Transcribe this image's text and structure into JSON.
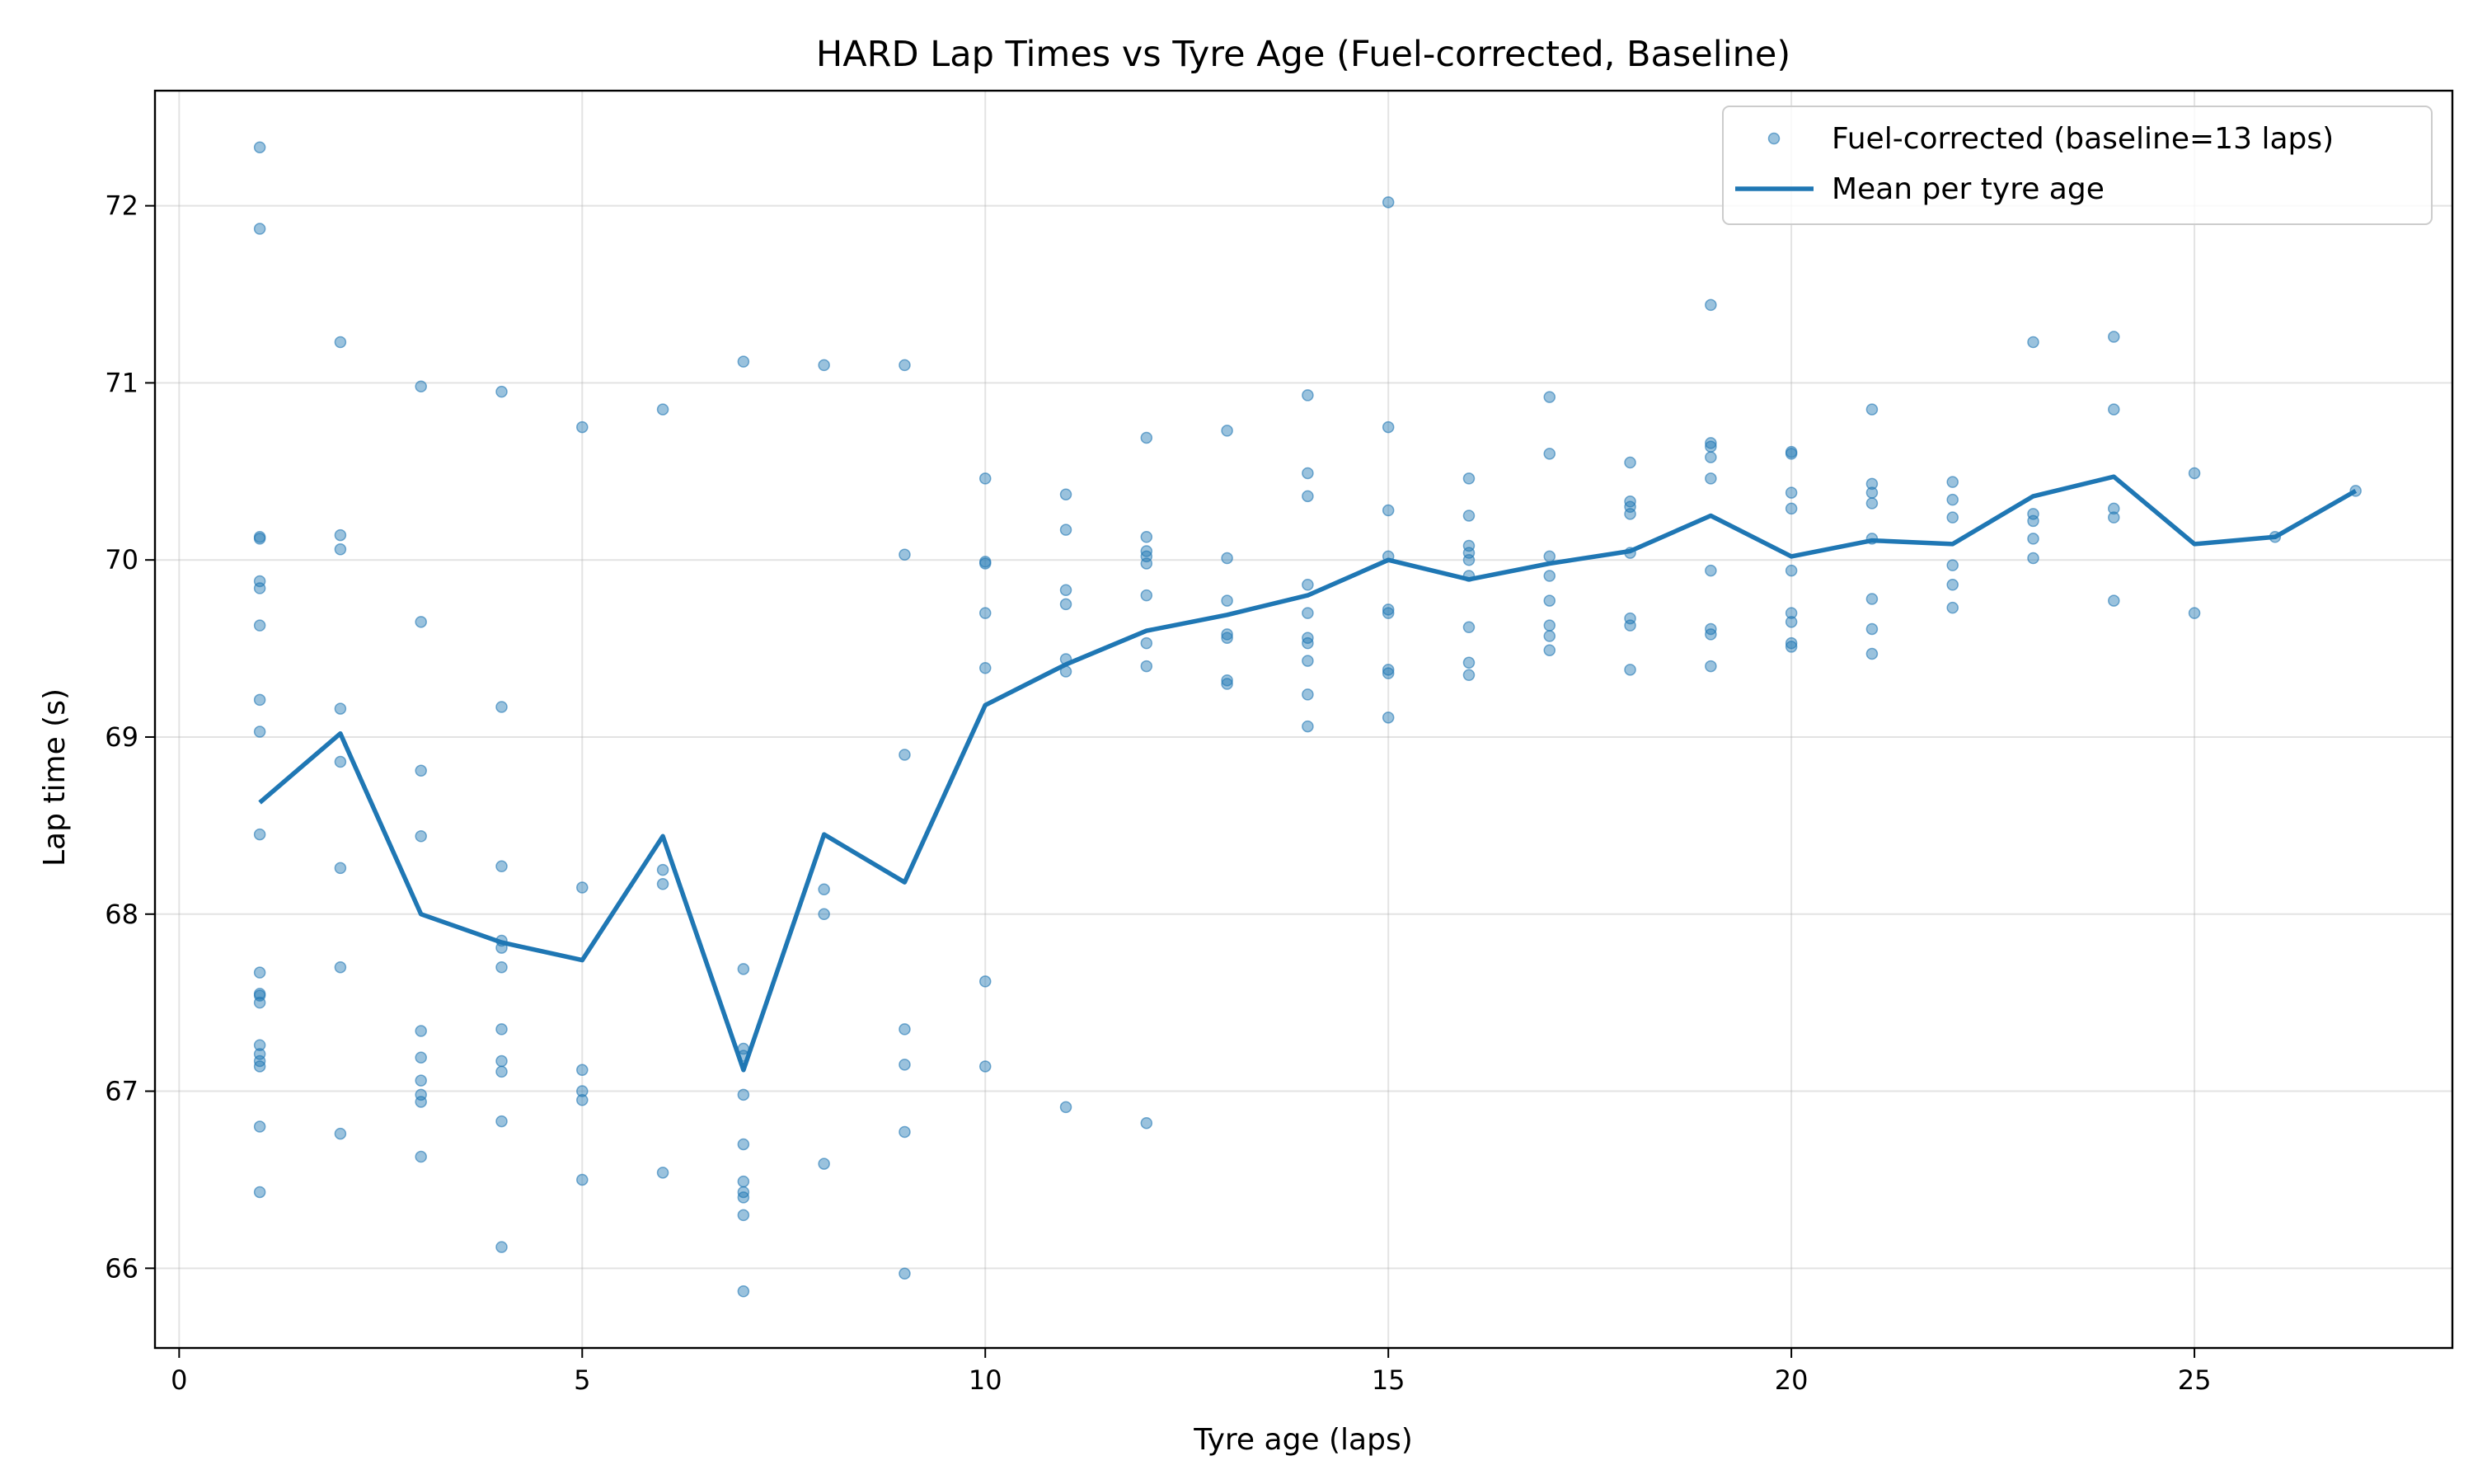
{
  "chart_data": {
    "type": "scatter",
    "title": "HARD Lap Times vs Tyre Age (Fuel-corrected, Baseline)",
    "xlabel": "Tyre age (laps)",
    "ylabel": "Lap time (s)",
    "xlim": [
      -0.3,
      28.2
    ],
    "ylim": [
      65.55,
      72.65
    ],
    "xticks": [
      0,
      5,
      10,
      15,
      20,
      25
    ],
    "yticks": [
      66,
      67,
      68,
      69,
      70,
      71,
      72
    ],
    "grid": true,
    "legend": "top-right",
    "colors": {
      "series": "#1f77b4"
    },
    "series": [
      {
        "name": "Fuel-corrected (baseline=13 laps)",
        "kind": "scatter",
        "points": [
          [
            1,
            72.33
          ],
          [
            1,
            71.87
          ],
          [
            1,
            70.13
          ],
          [
            1,
            70.12
          ],
          [
            1,
            69.88
          ],
          [
            1,
            69.84
          ],
          [
            1,
            69.63
          ],
          [
            1,
            69.21
          ],
          [
            1,
            69.03
          ],
          [
            1,
            68.45
          ],
          [
            1,
            67.67
          ],
          [
            1,
            67.55
          ],
          [
            1,
            67.54
          ],
          [
            1,
            67.5
          ],
          [
            1,
            67.26
          ],
          [
            1,
            67.21
          ],
          [
            1,
            67.17
          ],
          [
            1,
            67.14
          ],
          [
            1,
            66.8
          ],
          [
            1,
            66.43
          ],
          [
            2,
            71.23
          ],
          [
            2,
            70.14
          ],
          [
            2,
            70.06
          ],
          [
            2,
            69.16
          ],
          [
            2,
            68.86
          ],
          [
            2,
            68.26
          ],
          [
            2,
            67.7
          ],
          [
            2,
            66.76
          ],
          [
            3,
            70.98
          ],
          [
            3,
            69.65
          ],
          [
            3,
            68.81
          ],
          [
            3,
            68.44
          ],
          [
            3,
            67.34
          ],
          [
            3,
            67.19
          ],
          [
            3,
            67.06
          ],
          [
            3,
            66.98
          ],
          [
            3,
            66.94
          ],
          [
            3,
            66.63
          ],
          [
            4,
            70.95
          ],
          [
            4,
            69.17
          ],
          [
            4,
            68.27
          ],
          [
            4,
            67.85
          ],
          [
            4,
            67.81
          ],
          [
            4,
            67.7
          ],
          [
            4,
            67.35
          ],
          [
            4,
            67.17
          ],
          [
            4,
            67.11
          ],
          [
            4,
            66.83
          ],
          [
            4,
            66.12
          ],
          [
            5,
            70.75
          ],
          [
            5,
            68.15
          ],
          [
            5,
            67.12
          ],
          [
            5,
            67.0
          ],
          [
            5,
            66.95
          ],
          [
            5,
            66.5
          ],
          [
            6,
            70.85
          ],
          [
            6,
            68.25
          ],
          [
            6,
            68.17
          ],
          [
            6,
            66.54
          ],
          [
            7,
            71.12
          ],
          [
            7,
            67.69
          ],
          [
            7,
            67.24
          ],
          [
            7,
            67.2
          ],
          [
            7,
            66.98
          ],
          [
            7,
            66.7
          ],
          [
            7,
            66.49
          ],
          [
            7,
            66.43
          ],
          [
            7,
            66.4
          ],
          [
            7,
            66.3
          ],
          [
            7,
            65.87
          ],
          [
            8,
            71.1
          ],
          [
            8,
            68.14
          ],
          [
            8,
            68.0
          ],
          [
            8,
            66.59
          ],
          [
            9,
            71.1
          ],
          [
            9,
            70.03
          ],
          [
            9,
            68.9
          ],
          [
            9,
            67.35
          ],
          [
            9,
            67.15
          ],
          [
            9,
            66.77
          ],
          [
            9,
            65.97
          ],
          [
            10,
            70.46
          ],
          [
            10,
            69.99
          ],
          [
            10,
            69.98
          ],
          [
            10,
            69.7
          ],
          [
            10,
            69.39
          ],
          [
            10,
            67.62
          ],
          [
            10,
            67.14
          ],
          [
            11,
            70.37
          ],
          [
            11,
            70.17
          ],
          [
            11,
            69.83
          ],
          [
            11,
            69.75
          ],
          [
            11,
            69.44
          ],
          [
            11,
            69.37
          ],
          [
            11,
            66.91
          ],
          [
            12,
            70.69
          ],
          [
            12,
            70.13
          ],
          [
            12,
            70.05
          ],
          [
            12,
            70.02
          ],
          [
            12,
            69.98
          ],
          [
            12,
            69.8
          ],
          [
            12,
            69.53
          ],
          [
            12,
            69.4
          ],
          [
            12,
            66.82
          ],
          [
            13,
            70.73
          ],
          [
            13,
            70.01
          ],
          [
            13,
            69.77
          ],
          [
            13,
            69.58
          ],
          [
            13,
            69.56
          ],
          [
            13,
            69.32
          ],
          [
            13,
            69.3
          ],
          [
            14,
            70.93
          ],
          [
            14,
            70.49
          ],
          [
            14,
            70.36
          ],
          [
            14,
            69.86
          ],
          [
            14,
            69.7
          ],
          [
            14,
            69.56
          ],
          [
            14,
            69.53
          ],
          [
            14,
            69.43
          ],
          [
            14,
            69.24
          ],
          [
            14,
            69.06
          ],
          [
            15,
            72.02
          ],
          [
            15,
            70.75
          ],
          [
            15,
            70.28
          ],
          [
            15,
            70.02
          ],
          [
            15,
            69.72
          ],
          [
            15,
            69.7
          ],
          [
            15,
            69.38
          ],
          [
            15,
            69.36
          ],
          [
            15,
            69.11
          ],
          [
            16,
            70.46
          ],
          [
            16,
            70.25
          ],
          [
            16,
            70.08
          ],
          [
            16,
            70.04
          ],
          [
            16,
            70.0
          ],
          [
            16,
            69.91
          ],
          [
            16,
            69.62
          ],
          [
            16,
            69.42
          ],
          [
            16,
            69.35
          ],
          [
            17,
            70.92
          ],
          [
            17,
            70.6
          ],
          [
            17,
            70.02
          ],
          [
            17,
            69.91
          ],
          [
            17,
            69.77
          ],
          [
            17,
            69.63
          ],
          [
            17,
            69.57
          ],
          [
            17,
            69.49
          ],
          [
            18,
            70.55
          ],
          [
            18,
            70.33
          ],
          [
            18,
            70.3
          ],
          [
            18,
            70.26
          ],
          [
            18,
            70.04
          ],
          [
            18,
            69.67
          ],
          [
            18,
            69.63
          ],
          [
            18,
            69.38
          ],
          [
            19,
            71.44
          ],
          [
            19,
            70.66
          ],
          [
            19,
            70.64
          ],
          [
            19,
            70.58
          ],
          [
            19,
            70.46
          ],
          [
            19,
            69.94
          ],
          [
            19,
            69.61
          ],
          [
            19,
            69.58
          ],
          [
            19,
            69.4
          ],
          [
            20,
            70.61
          ],
          [
            20,
            70.6
          ],
          [
            20,
            70.38
          ],
          [
            20,
            70.29
          ],
          [
            20,
            69.94
          ],
          [
            20,
            69.7
          ],
          [
            20,
            69.65
          ],
          [
            20,
            69.53
          ],
          [
            20,
            69.51
          ],
          [
            21,
            70.85
          ],
          [
            21,
            70.43
          ],
          [
            21,
            70.38
          ],
          [
            21,
            70.32
          ],
          [
            21,
            70.12
          ],
          [
            21,
            69.78
          ],
          [
            21,
            69.61
          ],
          [
            21,
            69.47
          ],
          [
            22,
            70.44
          ],
          [
            22,
            70.34
          ],
          [
            22,
            70.24
          ],
          [
            22,
            69.97
          ],
          [
            22,
            69.86
          ],
          [
            22,
            69.73
          ],
          [
            23,
            71.23
          ],
          [
            23,
            70.26
          ],
          [
            23,
            70.22
          ],
          [
            23,
            70.12
          ],
          [
            23,
            70.01
          ],
          [
            24,
            71.26
          ],
          [
            24,
            70.85
          ],
          [
            24,
            70.29
          ],
          [
            24,
            70.24
          ],
          [
            24,
            69.77
          ],
          [
            25,
            70.49
          ],
          [
            25,
            69.7
          ],
          [
            26,
            70.13
          ],
          [
            27,
            70.39
          ]
        ]
      },
      {
        "name": "Mean per tyre age",
        "kind": "line",
        "x": [
          1,
          2,
          3,
          4,
          5,
          6,
          7,
          8,
          9,
          10,
          11,
          12,
          13,
          14,
          15,
          16,
          17,
          18,
          19,
          20,
          21,
          22,
          23,
          24,
          25,
          26,
          27
        ],
        "y": [
          68.63,
          69.02,
          68.0,
          67.84,
          67.74,
          68.44,
          67.12,
          68.45,
          68.18,
          69.18,
          69.41,
          69.6,
          69.69,
          69.8,
          70.0,
          69.89,
          69.98,
          70.05,
          70.25,
          70.02,
          70.11,
          70.09,
          70.36,
          70.47,
          70.09,
          70.13,
          70.39
        ]
      }
    ]
  }
}
